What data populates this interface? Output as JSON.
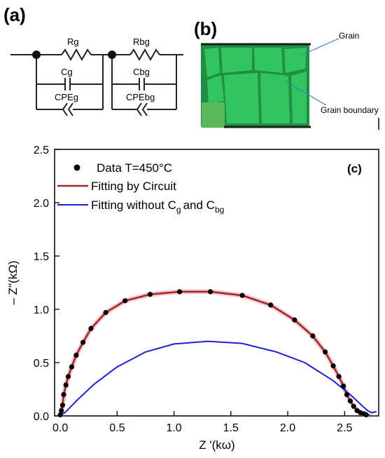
{
  "panel_a": {
    "letter": "(a)",
    "labels": [
      "Rg",
      "Cg",
      "CPEg",
      "Rbg",
      "Cbg",
      "CPEbg"
    ]
  },
  "panel_b": {
    "letter": "(b)",
    "grain_label": "Grain",
    "boundary_label": "Grain boundary",
    "colors": {
      "grain": "#33c462",
      "boundary": "#1f8f44",
      "base": "#58b85a"
    }
  },
  "chart_data": {
    "type": "scatter",
    "panel_letter": "(c)",
    "xlabel": "Z '(kω)",
    "ylabel": "– Z\"(kΩ)",
    "xlim": [
      -0.05,
      2.8
    ],
    "ylim": [
      0,
      2.5
    ],
    "xticks": [
      "0.0",
      "0.5",
      "1.0",
      "1.5",
      "2.0",
      "2.5"
    ],
    "yticks": [
      "0.0",
      "0.5",
      "1.0",
      "1.5",
      "2.0",
      "2.5"
    ],
    "legend_position": "top-left",
    "series": [
      {
        "name": "Data T=450°C",
        "kind": "scatter",
        "color": "#000000",
        "x": [
          0.0,
          0.01,
          0.02,
          0.03,
          0.05,
          0.07,
          0.1,
          0.14,
          0.2,
          0.27,
          0.4,
          0.57,
          0.79,
          1.05,
          1.32,
          1.6,
          1.85,
          2.06,
          2.22,
          2.33,
          2.4,
          2.45,
          2.49,
          2.52,
          2.55,
          2.58,
          2.61,
          2.64,
          2.67,
          2.69
        ],
        "y": [
          0.01,
          0.05,
          0.1,
          0.2,
          0.29,
          0.37,
          0.46,
          0.57,
          0.69,
          0.82,
          0.97,
          1.08,
          1.14,
          1.165,
          1.165,
          1.13,
          1.04,
          0.9,
          0.75,
          0.6,
          0.47,
          0.37,
          0.28,
          0.2,
          0.14,
          0.09,
          0.05,
          0.03,
          0.02,
          0.01
        ]
      },
      {
        "name": "Fitting by Circuit",
        "kind": "line",
        "color": "#a0281e",
        "x": [
          0.0,
          0.01,
          0.02,
          0.03,
          0.05,
          0.07,
          0.1,
          0.14,
          0.2,
          0.27,
          0.4,
          0.57,
          0.79,
          1.05,
          1.32,
          1.6,
          1.85,
          2.06,
          2.22,
          2.33,
          2.4,
          2.45,
          2.49,
          2.52,
          2.55,
          2.58,
          2.61,
          2.64,
          2.67,
          2.7,
          2.73
        ],
        "y": [
          0.0,
          0.05,
          0.1,
          0.2,
          0.29,
          0.37,
          0.46,
          0.57,
          0.69,
          0.82,
          0.97,
          1.08,
          1.14,
          1.165,
          1.165,
          1.13,
          1.04,
          0.9,
          0.75,
          0.6,
          0.47,
          0.37,
          0.28,
          0.2,
          0.14,
          0.09,
          0.05,
          0.03,
          0.02,
          0.01,
          0.0
        ]
      },
      {
        "name": "Fitting without C",
        "kind": "line",
        "color": "#1f1fd6",
        "x": [
          0.0,
          0.05,
          0.15,
          0.3,
          0.5,
          0.75,
          1.0,
          1.3,
          1.6,
          1.9,
          2.15,
          2.4,
          2.55,
          2.65,
          2.7,
          2.74,
          2.78
        ],
        "y": [
          0.0,
          0.04,
          0.15,
          0.3,
          0.46,
          0.6,
          0.675,
          0.7,
          0.68,
          0.6,
          0.5,
          0.33,
          0.2,
          0.1,
          0.05,
          0.03,
          0.04
        ]
      }
    ],
    "legend_blue_parts": {
      "sub1": "g",
      "and": "and C",
      "sub2": "bg"
    }
  }
}
